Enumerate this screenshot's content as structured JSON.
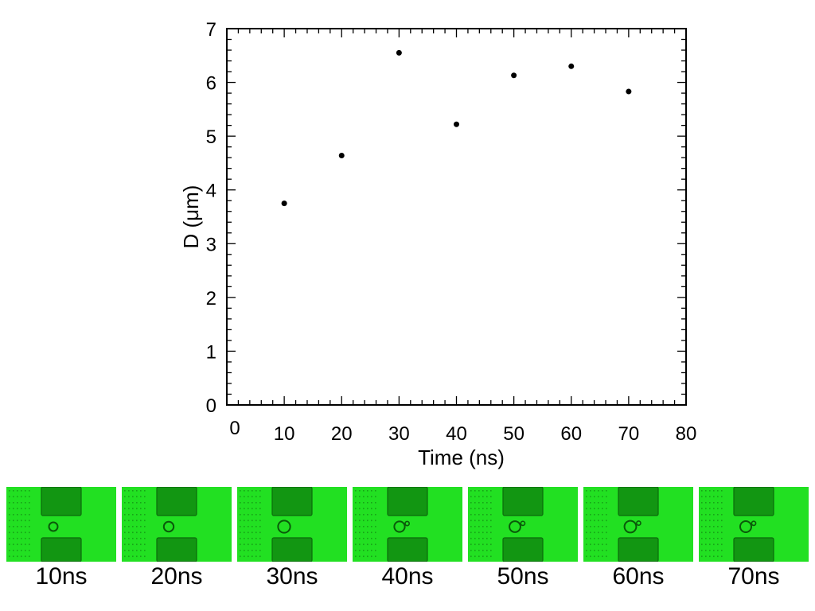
{
  "chart_data": {
    "type": "scatter",
    "x": [
      10,
      20,
      30,
      40,
      50,
      60,
      70
    ],
    "y": [
      3.75,
      4.64,
      6.55,
      5.22,
      6.13,
      6.3,
      5.83
    ],
    "xlabel": "Time (ns)",
    "ylabel": "D (μm)",
    "xlim": [
      0,
      80
    ],
    "ylim": [
      0,
      7
    ],
    "xticks": [
      "0",
      "10",
      "20",
      "30",
      "40",
      "50",
      "60",
      "70",
      "80"
    ],
    "yticks": [
      "0",
      "1",
      "2",
      "3",
      "4",
      "5",
      "6",
      "7"
    ],
    "grid": false,
    "marker_color": "#000000"
  },
  "frames": {
    "labels": [
      "10ns",
      "20ns",
      "30ns",
      "40ns",
      "50ns",
      "60ns",
      "70ns"
    ],
    "background_color": "#22e022",
    "pad_color": "#129612",
    "bubble_color": "#0a5a0a",
    "bubble_relative_size": [
      0.31,
      0.4,
      0.58,
      0.45,
      0.49,
      0.55,
      0.5
    ],
    "secondary_bubble": [
      false,
      false,
      false,
      true,
      true,
      true,
      true
    ]
  }
}
